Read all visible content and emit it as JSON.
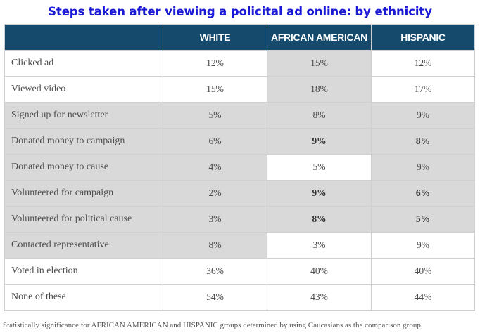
{
  "title": "Steps taken after viewing a policital ad online: by ethnicity",
  "footnote": "Statistically significance for AFRICAN AMERICAN and HISPANIC groups determined by using Caucasians as the comparison group.",
  "colors": {
    "title": "#1a19d6",
    "header_bg": "#154a6c",
    "header_text": "#ffffff",
    "shaded_cell": "#d9d9d9",
    "body_text": "#4d4d4d",
    "grid": "#cfcfcf"
  },
  "chart_data": {
    "type": "table",
    "title": "Steps taken after viewing a policital ad online: by ethnicity",
    "columns": [
      "",
      "WHITE",
      "AFRICAN AMERICAN",
      "HISPANIC"
    ],
    "rows": [
      {
        "label": "Clicked ad",
        "values": [
          "12%",
          "15%",
          "12%"
        ],
        "shaded": [
          false,
          true,
          false
        ],
        "bold": [
          false,
          false,
          false
        ]
      },
      {
        "label": "Viewed video",
        "values": [
          "15%",
          "18%",
          "17%"
        ],
        "shaded": [
          false,
          true,
          false
        ],
        "bold": [
          false,
          false,
          false
        ]
      },
      {
        "label": "Signed up for newsletter",
        "values": [
          "5%",
          "8%",
          "9%"
        ],
        "shaded": [
          true,
          true,
          true
        ],
        "bold": [
          false,
          false,
          false
        ]
      },
      {
        "label": "Donated money to campaign",
        "values": [
          "6%",
          "9%",
          "8%"
        ],
        "shaded": [
          true,
          true,
          true
        ],
        "bold": [
          false,
          true,
          true
        ]
      },
      {
        "label": "Donated money to cause",
        "values": [
          "4%",
          "5%",
          "9%"
        ],
        "shaded": [
          true,
          false,
          true
        ],
        "bold": [
          false,
          false,
          false
        ]
      },
      {
        "label": "Volunteered for campaign",
        "values": [
          "2%",
          "9%",
          "6%"
        ],
        "shaded": [
          true,
          true,
          true
        ],
        "bold": [
          false,
          true,
          true
        ]
      },
      {
        "label": "Volunteered for political cause",
        "values": [
          "3%",
          "8%",
          "5%"
        ],
        "shaded": [
          true,
          true,
          true
        ],
        "bold": [
          false,
          true,
          true
        ]
      },
      {
        "label": "Contacted representative",
        "values": [
          "8%",
          "3%",
          "9%"
        ],
        "shaded": [
          true,
          false,
          false
        ],
        "bold": [
          false,
          false,
          false
        ]
      },
      {
        "label": "Voted in election",
        "values": [
          "36%",
          "40%",
          "40%"
        ],
        "shaded": [
          false,
          false,
          false
        ],
        "bold": [
          false,
          false,
          false
        ]
      },
      {
        "label": "None of these",
        "values": [
          "54%",
          "43%",
          "44%"
        ],
        "shaded": [
          false,
          false,
          false
        ],
        "bold": [
          false,
          false,
          false
        ]
      }
    ],
    "label_shaded": [
      false,
      false,
      true,
      true,
      true,
      true,
      true,
      true,
      false,
      false
    ]
  }
}
